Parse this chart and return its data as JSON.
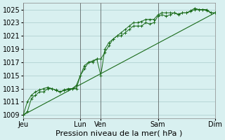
{
  "background_color": "#d8f0f0",
  "grid_color": "#aacccc",
  "line_color": "#1a6b1a",
  "xlabel": "Pression niveau de la mer( hPa )",
  "xlabel_fontsize": 8,
  "ylim": [
    1008.5,
    1026
  ],
  "yticks": [
    1009,
    1011,
    1013,
    1015,
    1017,
    1019,
    1021,
    1023,
    1025
  ],
  "ytick_fontsize": 7,
  "xtick_labels": [
    "Jeu",
    "Lun",
    "Ven",
    "Sam",
    "Dim"
  ],
  "xtick_positions": [
    0,
    28,
    38,
    66,
    94
  ],
  "xtick_fontsize": 7,
  "vline_positions": [
    0,
    28,
    38,
    66,
    94
  ],
  "vline_color": "#555555",
  "series1_x": [
    0,
    2,
    4,
    6,
    8,
    10,
    12,
    14,
    16,
    18,
    20,
    22,
    24,
    26,
    28,
    30,
    32,
    34,
    36,
    38,
    40,
    42,
    44,
    46,
    48,
    50,
    52,
    54,
    56,
    58,
    60,
    62,
    64,
    66,
    68,
    70,
    72,
    74,
    76,
    78,
    80,
    82,
    84,
    86,
    88,
    90,
    92,
    94
  ],
  "series1_y": [
    1009,
    1009.5,
    1011.5,
    1012,
    1012.5,
    1012.5,
    1013,
    1013,
    1012.8,
    1012.5,
    1012.7,
    1012.8,
    1013,
    1013,
    1015,
    1016.5,
    1017,
    1017,
    1017.5,
    1015,
    1019,
    1020,
    1020.5,
    1021,
    1021,
    1021.5,
    1022,
    1022.5,
    1022.5,
    1022.5,
    1023,
    1022.8,
    1023,
    1024,
    1024.2,
    1024,
    1024.2,
    1024.5,
    1024.3,
    1024.5,
    1024.5,
    1024.7,
    1025,
    1025,
    1025,
    1025,
    1024.5,
    1024.5
  ],
  "series2_x": [
    0,
    2,
    4,
    6,
    8,
    10,
    12,
    14,
    16,
    18,
    20,
    22,
    24,
    26,
    28,
    30,
    32,
    34,
    36,
    38,
    40,
    42,
    44,
    46,
    48,
    50,
    52,
    54,
    56,
    58,
    60,
    62,
    64,
    66,
    68,
    70,
    72,
    74,
    76,
    78,
    80,
    82,
    84,
    86,
    88,
    90,
    92,
    94
  ],
  "series2_y": [
    1009,
    1011,
    1012,
    1012.5,
    1012.8,
    1013,
    1013.2,
    1013,
    1012.7,
    1012.5,
    1012.8,
    1013,
    1013,
    1013.5,
    1015,
    1016,
    1017,
    1017.2,
    1017.5,
    1017.5,
    1018.5,
    1019.5,
    1020.5,
    1021,
    1021.5,
    1022,
    1022.5,
    1023,
    1023,
    1023.2,
    1023.5,
    1023.5,
    1023.5,
    1024.2,
    1024.5,
    1024.5,
    1024.5,
    1024.5,
    1024.2,
    1024.5,
    1024.5,
    1024.8,
    1025.2,
    1025,
    1025,
    1024.8,
    1024.5,
    1024.5
  ],
  "trend_x": [
    0,
    94
  ],
  "trend_y": [
    1009,
    1024.5
  ]
}
